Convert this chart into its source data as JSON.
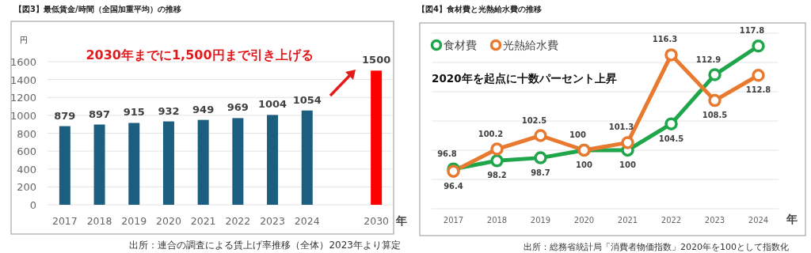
{
  "chart_data": [
    {
      "type": "bar",
      "title": "【図3】最低賃金/時間（全国加重平均）の推移",
      "ylabel": "円",
      "xlabel": "年",
      "categories": [
        "2017",
        "2018",
        "2019",
        "2020",
        "2021",
        "2022",
        "2023",
        "2024",
        null,
        "2030"
      ],
      "values": [
        879,
        897,
        915,
        932,
        949,
        969,
        1004,
        1054,
        null,
        1500
      ],
      "colors": [
        "#1b5e80",
        "#1b5e80",
        "#1b5e80",
        "#1b5e80",
        "#1b5e80",
        "#1b5e80",
        "#1b5e80",
        "#1b5e80",
        null,
        "#ff0000"
      ],
      "ylim": [
        0,
        1600
      ],
      "yticks": [
        0,
        200,
        400,
        600,
        800,
        1000,
        1200,
        1400,
        1600
      ],
      "grid": "y",
      "data_labels": true,
      "annotations": [
        "2030年までに1,500円まで引き上げる",
        "出所：連合の調査による賃上げ率推移（全体）2023年より算定"
      ]
    },
    {
      "type": "line",
      "title": "【図4】食材費と光熱給水費の推移",
      "xlabel": "年",
      "categories": [
        "2017",
        "2018",
        "2019",
        "2020",
        "2021",
        "2022",
        "2023",
        "2024"
      ],
      "series": [
        {
          "name": "食材費",
          "color": "#1fa64a",
          "values": [
            96.8,
            98.2,
            98.7,
            100,
            100,
            104.5,
            112.9,
            117.8
          ]
        },
        {
          "name": "光熱給水費",
          "color": "#e8792f",
          "values": [
            96.4,
            100.2,
            102.5,
            100,
            101.3,
            116.3,
            108.5,
            112.8
          ]
        }
      ],
      "ylim": [
        90,
        120
      ],
      "yticks": [
        {
          "value": 90,
          "label": null
        },
        {
          "value": 95,
          "label": null
        },
        {
          "value": 100,
          "label": null
        },
        {
          "value": 105,
          "label": null
        },
        {
          "value": 110,
          "label": null
        },
        {
          "value": 115,
          "label": null
        },
        {
          "value": 120,
          "label": null
        }
      ],
      "tick_labels": "x",
      "grid": "y",
      "data_labels": true,
      "legend": "top left",
      "marker": "circle",
      "line_style": "solid",
      "annotations": [
        "2020年を起点に十数パーセント上昇",
        "出所：総務省統計局「消費者物価指数」2020年を100として指数化"
      ]
    }
  ]
}
